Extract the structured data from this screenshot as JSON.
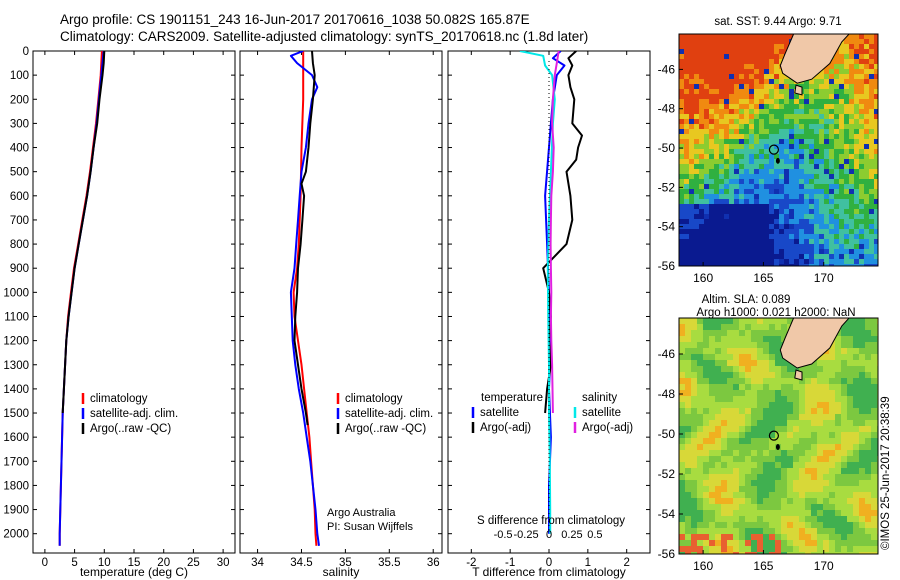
{
  "title": {
    "line1": "Argo profile: CS 1901151_243 16-Jun-2017 20170616_1038 50.082S 165.87E",
    "line2": "Climatology: CARS2009. Satellite-adjusted climatology: synTS_20170618.nc (1.8d later)"
  },
  "colors": {
    "climatology": "#ff0000",
    "satellite": "#0000ff",
    "argo": "#000000",
    "cyan": "#00e8e8",
    "magenta": "#e020e0"
  },
  "credit": "Argo Australia",
  "pi": "PI: Susan Wijffels",
  "timestamp": "©IMOS 25-Jun-2017 20:38:39",
  "chart_data": [
    {
      "type": "line",
      "xlabel": "temperature (deg C)",
      "xticks": [
        "0",
        "5",
        "10",
        "15",
        "20",
        "25",
        "30"
      ],
      "yticks": [
        "0",
        "100",
        "200",
        "300",
        "400",
        "500",
        "600",
        "700",
        "800",
        "900",
        "1000",
        "1100",
        "1200",
        "1300",
        "1400",
        "1500",
        "1600",
        "1700",
        "1800",
        "1900",
        "2000"
      ],
      "xlim": [
        -2,
        32
      ],
      "ylim": [
        0,
        2080
      ],
      "legend": [
        "climatology",
        "satellite-adj. clim.",
        "Argo(..raw -QC)"
      ],
      "series": [
        {
          "name": "climatology",
          "color": "#ff0000",
          "depth": [
            0,
            50,
            100,
            200,
            300,
            400,
            500,
            600,
            700,
            800,
            900,
            1000,
            1100,
            1200,
            1300,
            1400,
            1500,
            1600,
            1700,
            1800,
            1900,
            2000,
            2050
          ],
          "values": [
            9.6,
            9.5,
            9.4,
            9.0,
            8.6,
            8.1,
            7.6,
            7.0,
            6.3,
            5.6,
            4.9,
            4.4,
            3.9,
            3.6,
            3.4,
            3.2,
            3.0,
            2.9,
            2.8,
            2.7,
            2.6,
            2.5,
            2.5
          ]
        },
        {
          "name": "satellite-adj. clim.",
          "color": "#0000ff",
          "depth": [
            0,
            50,
            100,
            200,
            300,
            400,
            500,
            600,
            700,
            800,
            900,
            1000,
            1100,
            1200,
            1300,
            1400,
            1500,
            1600,
            1700,
            1800,
            1900,
            2000,
            2050
          ],
          "values": [
            9.9,
            9.7,
            9.5,
            9.1,
            8.7,
            8.2,
            7.7,
            7.1,
            6.4,
            5.7,
            5.0,
            4.5,
            4.0,
            3.6,
            3.4,
            3.2,
            3.0,
            2.9,
            2.8,
            2.7,
            2.6,
            2.5,
            2.5
          ]
        },
        {
          "name": "Argo(..raw -QC)",
          "color": "#000000",
          "depth": [
            0,
            50,
            100,
            200,
            300,
            400,
            500,
            600,
            700,
            800,
            900,
            1000,
            1100,
            1200,
            1300,
            1400,
            1500
          ],
          "values": [
            10.0,
            9.9,
            9.7,
            9.2,
            8.8,
            8.2,
            7.7,
            7.1,
            6.4,
            5.7,
            5.0,
            4.5,
            4.0,
            3.6,
            3.4,
            3.2,
            3.0
          ]
        }
      ]
    },
    {
      "type": "line",
      "xlabel": "salinity",
      "xticks": [
        "34",
        "34.5",
        "35",
        "35.5",
        "36"
      ],
      "xlim": [
        33.8,
        36.1
      ],
      "ylim": [
        0,
        2080
      ],
      "legend": [
        "climatology",
        "satellite-adj. clim.",
        "Argo(..raw -QC)"
      ],
      "series": [
        {
          "name": "climatology",
          "color": "#ff0000",
          "depth": [
            0,
            100,
            200,
            400,
            600,
            800,
            900,
            1000,
            1100,
            1200,
            1300,
            1400,
            1500,
            1600,
            1700,
            1800,
            1900,
            2000,
            2050
          ],
          "values": [
            34.52,
            34.52,
            34.52,
            34.5,
            34.49,
            34.47,
            34.45,
            34.41,
            34.42,
            34.46,
            34.5,
            34.53,
            34.56,
            34.59,
            34.61,
            34.63,
            34.65,
            34.66,
            34.67
          ]
        },
        {
          "name": "satellite-adj. clim.",
          "color": "#0000ff",
          "depth": [
            0,
            20,
            50,
            100,
            150,
            200,
            300,
            400,
            500,
            600,
            700,
            800,
            900,
            1000,
            1100,
            1200,
            1300,
            1400,
            1500,
            1600,
            1700,
            1800,
            1900,
            2000,
            2050
          ],
          "values": [
            34.52,
            34.38,
            34.45,
            34.62,
            34.68,
            34.62,
            34.58,
            34.55,
            34.5,
            34.48,
            34.46,
            34.44,
            34.42,
            34.38,
            34.39,
            34.4,
            34.43,
            34.47,
            34.52,
            34.56,
            34.6,
            34.63,
            34.66,
            34.68,
            34.7
          ]
        },
        {
          "name": "Argo(..raw -QC)",
          "color": "#000000",
          "depth": [
            0,
            50,
            100,
            200,
            300,
            400,
            500,
            550,
            600,
            700,
            800,
            900,
            1000,
            1100,
            1200,
            1300,
            1400,
            1500,
            1550
          ],
          "values": [
            34.62,
            34.63,
            34.65,
            34.63,
            34.6,
            34.58,
            34.55,
            34.5,
            34.53,
            34.51,
            34.49,
            34.46,
            34.45,
            34.43,
            34.42,
            34.46,
            34.5,
            34.55,
            34.57
          ]
        }
      ]
    },
    {
      "type": "line",
      "xlabel": "T difference from climatology",
      "xticks": [
        "-2",
        "-1",
        "0",
        "1",
        "2"
      ],
      "sxlabel": "S difference from climatology",
      "sxticks": [
        "-0.5",
        "-0.25",
        "0",
        "0.25",
        "0.5"
      ],
      "xlim": [
        -2.6,
        2.6
      ],
      "ylim": [
        0,
        2080
      ],
      "legend_title_left": "temperature",
      "legend_title_right": "salinity",
      "legend_left": [
        "satellite",
        "Argo(-adj)"
      ],
      "legend_right": [
        "satellite",
        "Argo(-adj)"
      ],
      "series": [
        {
          "name": "T satellite",
          "color": "#0000ff",
          "depth": [
            0,
            30,
            60,
            100,
            200,
            300,
            400,
            600,
            800,
            1000,
            1200,
            1400,
            1600,
            1800,
            2000
          ],
          "values": [
            0.3,
            0.1,
            0.4,
            0.2,
            0.1,
            0.05,
            0.0,
            -0.1,
            -0.05,
            0.0,
            0.05,
            0.0,
            0.05,
            0.0,
            0.0
          ]
        },
        {
          "name": "T Argo(-adj)",
          "color": "#000000",
          "depth": [
            0,
            30,
            60,
            100,
            150,
            200,
            300,
            350,
            400,
            450,
            500,
            600,
            700,
            800,
            900,
            1000,
            1100,
            1200,
            1300,
            1400,
            1500
          ],
          "values": [
            0.7,
            0.5,
            0.6,
            0.5,
            0.55,
            0.65,
            0.6,
            0.85,
            0.75,
            0.7,
            0.45,
            0.55,
            0.6,
            0.45,
            -0.15,
            0.0,
            0.05,
            0.0,
            0.05,
            -0.05,
            -0.1
          ]
        },
        {
          "name": "S satellite",
          "color": "#00e8e8",
          "depth": [
            0,
            20,
            60,
            100,
            200,
            300,
            500,
            700,
            900,
            1100,
            1300,
            1500,
            1700,
            1900,
            2000
          ],
          "values": [
            -0.75,
            -0.15,
            -0.1,
            0.08,
            0.15,
            0.1,
            0.05,
            0.0,
            -0.03,
            -0.02,
            0.0,
            0.0,
            0.02,
            0.03,
            0.03
          ]
        },
        {
          "name": "S Argo(-adj)",
          "color": "#e020e0",
          "depth": [
            0,
            50,
            100,
            200,
            300,
            400,
            500,
            600,
            700,
            800,
            900,
            1000,
            1100,
            1200,
            1300,
            1400,
            1500
          ],
          "values": [
            0.25,
            0.2,
            0.15,
            0.1,
            0.08,
            0.12,
            0.1,
            0.06,
            0.05,
            0.04,
            0.05,
            0.06,
            0.05,
            0.06,
            0.08,
            0.09,
            0.1
          ]
        }
      ]
    },
    {
      "type": "heatmap",
      "title": "sat. SST: 9.44 Argo: 9.71",
      "xticks": [
        "160",
        "165",
        "170"
      ],
      "yticks": [
        "-46",
        "-48",
        "-50",
        "-52",
        "-54",
        "-56"
      ],
      "xlim": [
        158,
        174.5
      ],
      "ylim": [
        -56,
        -44.2
      ],
      "argo_position": [
        165.87,
        -50.08
      ]
    },
    {
      "type": "heatmap",
      "title": "Altim. SLA: 0.089",
      "subtitle": "Argo h1000: 0.021 h2000: NaN",
      "xticks": [
        "160",
        "165",
        "170"
      ],
      "yticks": [
        "-46",
        "-48",
        "-50",
        "-52",
        "-54",
        "-56"
      ],
      "xlim": [
        158,
        174.5
      ],
      "ylim": [
        -56,
        -44.2
      ],
      "argo_position": [
        165.87,
        -50.08
      ]
    }
  ]
}
